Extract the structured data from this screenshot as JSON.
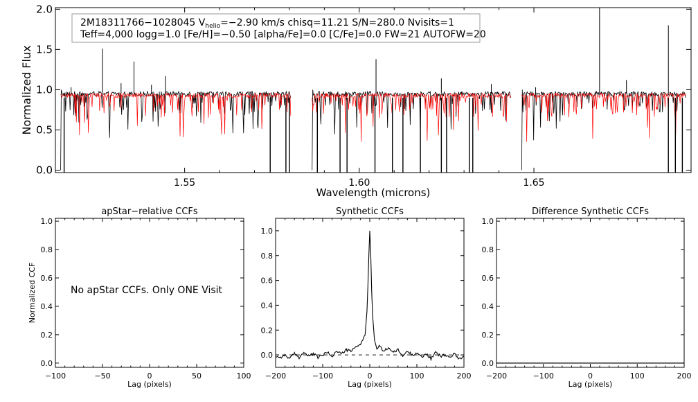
{
  "chart_data": [
    {
      "type": "line",
      "panel": "spectrum",
      "title": "",
      "xlabel": "Wavelength (microns)",
      "ylabel": "Normalized Flux",
      "xlim": [
        1.513,
        1.695
      ],
      "ylim": [
        -0.03,
        2.02
      ],
      "xticks": [
        1.55,
        1.6,
        1.65
      ],
      "xtick_labels": [
        "1.55",
        "1.60",
        "1.65"
      ],
      "yticks": [
        0.0,
        0.5,
        1.0,
        1.5,
        2.0
      ],
      "ytick_labels": [
        "0.0",
        "0.5",
        "1.0",
        "1.5",
        "2.0"
      ],
      "chips": [
        [
          1.5145,
          1.5805
        ],
        [
          1.5865,
          1.6435
        ],
        [
          1.6465,
          1.6935
        ]
      ],
      "series": [
        {
          "color": "#000000",
          "baseline": 0.94
        },
        {
          "color": "#ff0000",
          "baseline": 0.92
        }
      ],
      "emission_spikes": [
        {
          "x": 1.5175,
          "y": 1.03
        },
        {
          "x": 1.5265,
          "y": 1.51
        },
        {
          "x": 1.5318,
          "y": 1.08
        },
        {
          "x": 1.5355,
          "y": 1.35
        },
        {
          "x": 1.5405,
          "y": 1.06
        },
        {
          "x": 1.5445,
          "y": 1.17
        },
        {
          "x": 1.6048,
          "y": 1.38
        },
        {
          "x": 1.6235,
          "y": 1.14
        },
        {
          "x": 1.6378,
          "y": 1.07
        },
        {
          "x": 1.6505,
          "y": 1.03
        },
        {
          "x": 1.6688,
          "y": 2.02
        },
        {
          "x": 1.6765,
          "y": 1.12
        },
        {
          "x": 1.6885,
          "y": 1.8
        }
      ],
      "absorption_drops": [
        1.5155,
        1.5745,
        1.579,
        1.58,
        1.588,
        1.5945,
        1.5965,
        1.6045,
        1.6095,
        1.6125,
        1.6175,
        1.6235,
        1.625,
        1.6315,
        1.6325,
        1.6885,
        1.6905,
        1.6925
      ],
      "info_box": {
        "star_id": "2M18311766−1028045",
        "v_symbol": "V",
        "v_subscript": "helio",
        "v_value": "=−2.90 km/s",
        "chisq": "chisq=11.21",
        "snr": "S/N=280.0",
        "nvisits": "Nvisits=1",
        "line2": "Teff=4,000 logg=1.0 [Fe/H]=−0.50 [alpha/Fe]=0.0 [C/Fe]=0.0 FW=21 AUTOFW=20"
      }
    },
    {
      "type": "line",
      "panel": "apstar-ccf",
      "title": "apStar−relative CCFs",
      "xlabel": "Lag (pixels)",
      "ylabel": "Normalized CCF",
      "xlim": [
        -100,
        100
      ],
      "ylim": [
        -0.03,
        1.02
      ],
      "xticks": [
        -100,
        -50,
        0,
        50,
        100
      ],
      "xtick_labels": [
        "−100",
        "−50",
        "0",
        "50",
        "100"
      ],
      "yticks": [
        0.0,
        0.2,
        0.4,
        0.6,
        0.8,
        1.0
      ],
      "ytick_labels": [
        "0.0",
        "0.2",
        "0.4",
        "0.6",
        "0.8",
        "1.0"
      ],
      "annotation": "No apStar CCFs.  Only ONE Visit",
      "series": []
    },
    {
      "type": "line",
      "panel": "synthetic-ccf",
      "title": "Synthetic CCFs",
      "xlabel": "Lag (pixels)",
      "ylabel": "",
      "xlim": [
        -200,
        200
      ],
      "ylim": [
        -0.1,
        1.1
      ],
      "xticks": [
        -200,
        -100,
        0,
        100,
        200
      ],
      "xtick_labels": [
        "−200",
        "−100",
        "0",
        "100",
        "200"
      ],
      "yticks": [
        0.0,
        0.2,
        0.4,
        0.6,
        0.8,
        1.0
      ],
      "ytick_labels": [
        "0.0",
        "0.2",
        "0.4",
        "0.6",
        "0.8",
        "1.0"
      ],
      "zero_line": 0.0,
      "series": [
        {
          "color": "#000000",
          "x": [
            -200,
            -190,
            -180,
            -170,
            -160,
            -150,
            -140,
            -130,
            -120,
            -110,
            -100,
            -90,
            -80,
            -70,
            -60,
            -50,
            -40,
            -30,
            -20,
            -15,
            -10,
            -6,
            -4,
            -2,
            0,
            2,
            4,
            6,
            10,
            15,
            20,
            30,
            40,
            50,
            60,
            70,
            80,
            90,
            100,
            110,
            120,
            130,
            140,
            150,
            160,
            170,
            180,
            190,
            200
          ],
          "y": [
            -0.01,
            -0.02,
            0.0,
            -0.03,
            0.01,
            -0.02,
            0.02,
            -0.01,
            0.01,
            -0.02,
            0.0,
            0.02,
            -0.01,
            0.03,
            0.01,
            0.04,
            0.03,
            0.06,
            0.09,
            0.12,
            0.16,
            0.35,
            0.55,
            0.8,
            1.0,
            0.82,
            0.52,
            0.32,
            0.12,
            0.05,
            0.07,
            0.03,
            0.06,
            0.02,
            0.04,
            -0.01,
            0.03,
            0.0,
            0.02,
            -0.02,
            0.01,
            -0.03,
            0.02,
            -0.01,
            0.0,
            -0.02,
            0.01,
            -0.03,
            -0.01
          ]
        }
      ]
    },
    {
      "type": "line",
      "panel": "difference-ccf",
      "title": "Difference Synthetic CCFs",
      "xlabel": "Lag (pixels)",
      "ylabel": "",
      "xlim": [
        -200,
        200
      ],
      "ylim": [
        -0.03,
        1.02
      ],
      "xticks": [
        -200,
        -100,
        0,
        100,
        200
      ],
      "xtick_labels": [
        "−200",
        "−100",
        "0",
        "100",
        "200"
      ],
      "yticks": [
        0.0,
        0.2,
        0.4,
        0.6,
        0.8,
        1.0
      ],
      "ytick_labels": [
        "0.0",
        "0.2",
        "0.4",
        "0.6",
        "0.8",
        "1.0"
      ],
      "series": [
        {
          "color": "#000000",
          "x": [
            -200,
            200
          ],
          "y": [
            0.0,
            0.0
          ]
        }
      ]
    }
  ]
}
